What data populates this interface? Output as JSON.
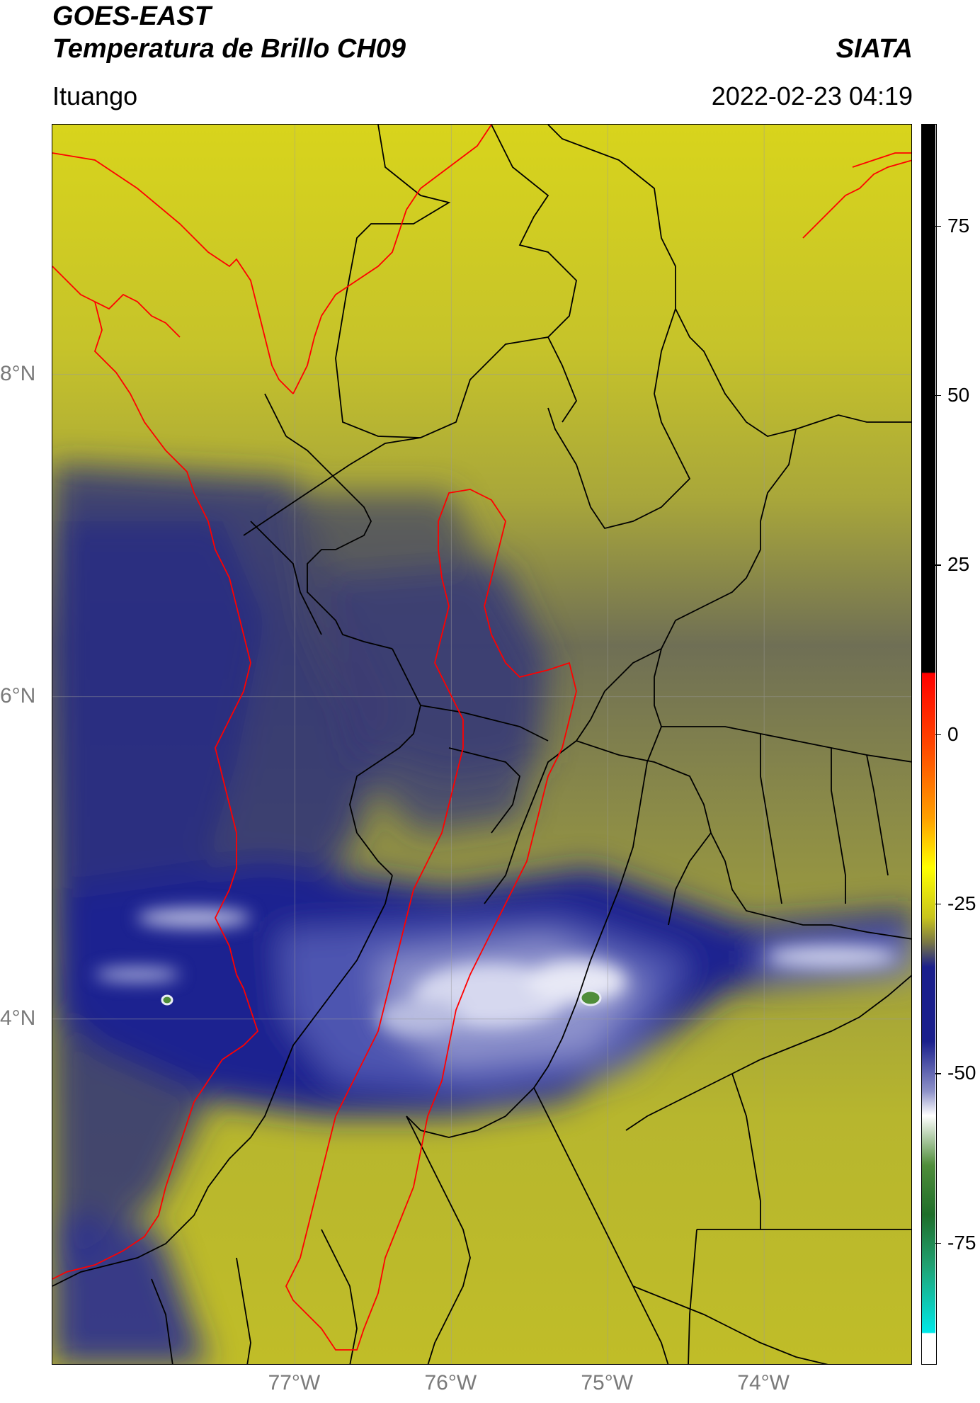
{
  "header": {
    "title": "GOES-EAST",
    "subtitle": "Temperatura de Brillo CH09",
    "organization": "SIATA",
    "region": "Ituango",
    "datetime": "2022-02-23 04:19"
  },
  "map": {
    "lon_range": [
      -78.55,
      -73.05
    ],
    "lat_range": [
      1.85,
      9.55
    ],
    "lat_ticks": [
      {
        "value": 8,
        "label": "8°N"
      },
      {
        "value": 6,
        "label": "6°N"
      },
      {
        "value": 4,
        "label": "4°N"
      }
    ],
    "lon_ticks": [
      {
        "value": -77,
        "label": "77°W"
      },
      {
        "value": -76,
        "label": "76°W"
      },
      {
        "value": -75,
        "label": "75°W"
      },
      {
        "value": -74,
        "label": "74°W"
      }
    ],
    "colors": {
      "coastline": "#ff0000",
      "boundaries": "#000000",
      "warm": "#c9c41f",
      "cold": "#1a1f8c"
    }
  },
  "colorbar": {
    "range": [
      -93,
      90
    ],
    "ticks": [
      {
        "value": 75,
        "label": "75"
      },
      {
        "value": 50,
        "label": "50"
      },
      {
        "value": 25,
        "label": "25"
      },
      {
        "value": 0,
        "label": "0"
      },
      {
        "value": -25,
        "label": "-25"
      },
      {
        "value": -50,
        "label": "-50"
      },
      {
        "value": -75,
        "label": "-75"
      }
    ]
  }
}
